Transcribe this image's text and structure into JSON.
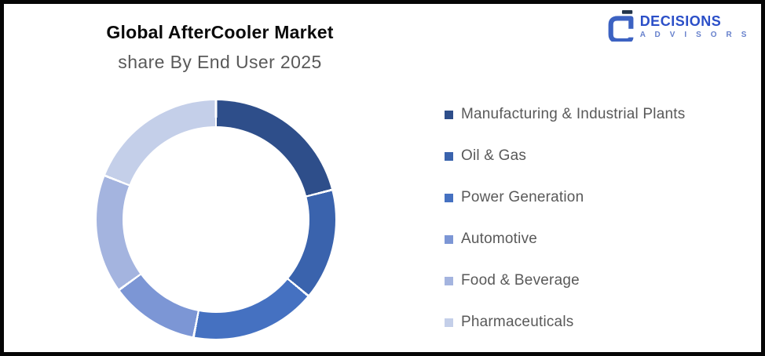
{
  "title": {
    "line1": "Global AfterCooler Market",
    "line2": "share By End User 2025"
  },
  "logo": {
    "name": "DECISIONS",
    "subtitle": "A D V I S O R S",
    "name_color": "#2B4FC8",
    "subtitle_color": "#6781CC",
    "icon_color": "#3C62C2",
    "icon_accent_color": "#22344A"
  },
  "frame": {
    "border_color": "#060606",
    "background_color": "#FFFFFF"
  },
  "text_colors": {
    "title_primary": "#0A0A0A",
    "title_secondary": "#595959",
    "legend_text": "#595959"
  },
  "chart_data": {
    "type": "pie",
    "subtype": "donut",
    "title": "Global AfterCooler Market share By End User 2025",
    "categories": [
      "Manufacturing & Industrial Plants",
      "Oil & Gas",
      "Power Generation",
      "Automotive",
      "Food & Beverage",
      "Pharmaceuticals"
    ],
    "values": [
      21,
      15,
      17,
      12,
      16,
      19
    ],
    "unit": "% (estimated from segment angles, no data labels shown)",
    "colors": [
      "#2E4E8A",
      "#3A63AD",
      "#4571C1",
      "#7C96D5",
      "#A4B4DF",
      "#C4CFE9"
    ],
    "start_angle_deg": 0,
    "direction": "clockwise",
    "segment_gap_color": "#FFFFFF",
    "segment_gap_deg": 1.1,
    "legend_position": "right",
    "data_labels": false,
    "hole_ratio": 0.78
  }
}
